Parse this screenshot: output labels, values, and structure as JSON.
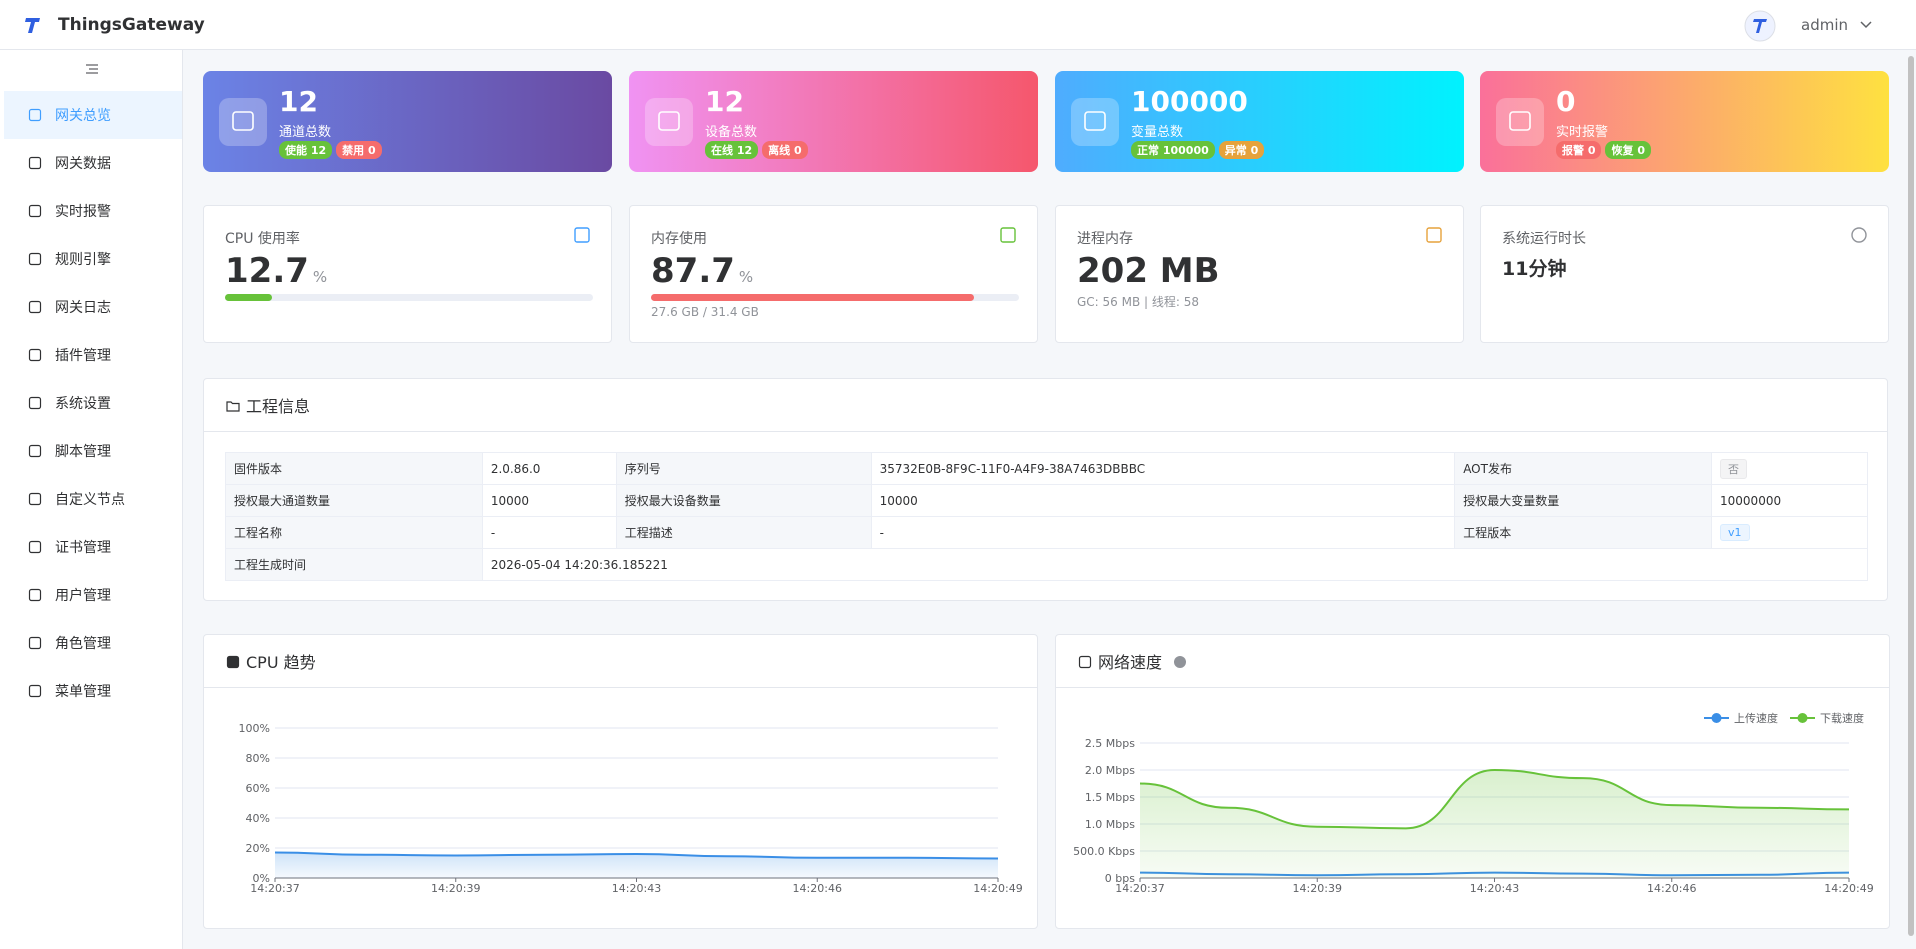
{
  "header": {
    "brand": "ThingsGateway",
    "user": "admin"
  },
  "menu": {
    "active": 0,
    "items": [
      "网关总览",
      "网关数据",
      "实时报警",
      "规则引擎",
      "网关日志",
      "插件管理",
      "系统设置",
      "脚本管理",
      "自定义节点",
      "证书管理",
      "用户管理",
      "角色管理",
      "菜单管理"
    ]
  },
  "stat_cards": [
    {
      "value": 12,
      "label": "通道总数",
      "gradient": [
        "#6b83e6",
        "#6a4aa2"
      ],
      "badges": [
        {
          "text": "使能 12",
          "color": "#67c23a"
        },
        {
          "text": "禁用 0",
          "color": "#f56c6c"
        }
      ]
    },
    {
      "value": 12,
      "label": "设备总数",
      "gradient": [
        "#f093f3",
        "#f5576c"
      ],
      "badges": [
        {
          "text": "在线 12",
          "color": "#67c23a"
        },
        {
          "text": "离线 0",
          "color": "#f56c6c"
        }
      ]
    },
    {
      "value": 100000,
      "label": "变量总数",
      "gradient": [
        "#4facfe",
        "#00f2fe"
      ],
      "badges": [
        {
          "text": "正常 100000",
          "color": "#67c23a"
        },
        {
          "text": "异常 0",
          "color": "#e6a23c"
        }
      ]
    },
    {
      "value": 0,
      "label": "实时报警",
      "gradient": [
        "#fa709a",
        "#fee140"
      ],
      "badges": [
        {
          "text": "报警 0",
          "color": "#f56c6c"
        },
        {
          "text": "恢复 0",
          "color": "#67c23a"
        }
      ]
    }
  ],
  "metrics": [
    {
      "label": "CPU 使用率",
      "value": 12.7,
      "unit": "%",
      "bar_color": "#67c23a"
    },
    {
      "label": "内存使用",
      "value": 87.7,
      "unit": "%",
      "bar_color": "#f56c6c",
      "detail": "27.6 GB / 31.4 GB"
    },
    {
      "label": "进程内存",
      "value": "202 MB",
      "detail": "GC: 56 MB | 线程: 58"
    },
    {
      "label": "系统运行时长",
      "value": "11分钟"
    }
  ],
  "project": {
    "title": "工程信息",
    "rows": [
      [
        "固件版本",
        "2.0.86.0",
        "序列号",
        "35732E0B-8F9C-11F0-A4F9-38A7463DBBBC",
        "AOT发布",
        {
          "text": "否",
          "tag": "gray"
        }
      ],
      [
        "授权最大通道数量",
        "10000",
        "授权最大设备数量",
        "10000",
        "授权最大变量数量",
        "10000000"
      ],
      [
        "工程名称",
        "-",
        "工程描述",
        "-",
        "工程版本",
        {
          "text": "v1",
          "tag": "blue"
        }
      ],
      [
        "工程生成时间",
        "2026-05-04 14:20:36.185221"
      ]
    ]
  },
  "chart_data": [
    {
      "type": "line",
      "title": "CPU 趋势",
      "categories": [
        "14:20:37",
        null,
        "14:20:39",
        null,
        "14:20:43",
        null,
        "14:20:46",
        null,
        "14:20:49"
      ],
      "values": [
        17,
        15.5,
        15,
        15.5,
        16,
        14.5,
        13.5,
        13.5,
        13
      ],
      "color": "#3a8ee6",
      "area": true,
      "ylim": [
        0,
        100
      ],
      "yticks": [
        {
          "value": 0,
          "label": "0%"
        },
        {
          "value": 20,
          "label": "20%"
        },
        {
          "value": 40,
          "label": "40%"
        },
        {
          "value": 60,
          "label": "60%"
        },
        {
          "value": 80,
          "label": "80%"
        },
        {
          "value": 100,
          "label": "100%"
        }
      ],
      "grid": true
    },
    {
      "type": "line",
      "title": "网络速度",
      "categories": [
        "14:20:37",
        null,
        "14:20:39",
        null,
        "14:20:43",
        null,
        "14:20:46",
        null,
        "14:20:49"
      ],
      "series": [
        {
          "name": "上传速度",
          "color": "#3a8ee6",
          "values": [
            0.1,
            0.07,
            0.05,
            0.07,
            0.1,
            0.08,
            0.05,
            0.06,
            0.1
          ]
        },
        {
          "name": "下载速度",
          "color": "#67c23a",
          "area": true,
          "values": [
            1.75,
            1.3,
            0.95,
            0.92,
            2.0,
            1.85,
            1.35,
            1.3,
            1.27
          ]
        }
      ],
      "ylim": [
        0,
        2.5
      ],
      "yticks": [
        {
          "value": 0,
          "label": "0 bps"
        },
        {
          "value": 0.5,
          "label": "500.0 Kbps"
        },
        {
          "value": 1,
          "label": "1.0 Mbps"
        },
        {
          "value": 1.5,
          "label": "1.5 Mbps"
        },
        {
          "value": 2,
          "label": "2.0 Mbps"
        },
        {
          "value": 2.5,
          "label": "2.5 Mbps"
        }
      ],
      "grid": true,
      "legend": "top-right"
    }
  ]
}
